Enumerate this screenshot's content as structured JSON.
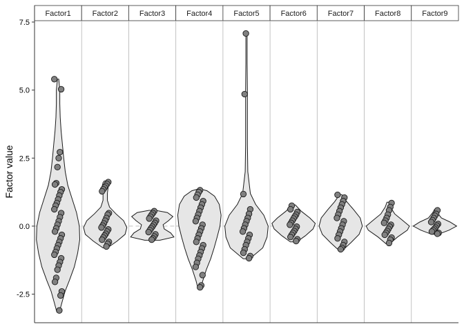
{
  "chart_data": {
    "type": "violin",
    "ylabel": "Factor value",
    "xlabel": "",
    "ylim": [
      -3.55,
      7.55
    ],
    "yticks": [
      -2.5,
      0.0,
      2.5,
      5.0,
      7.5
    ],
    "ytick_labels": [
      "-2.5",
      "0.0",
      "2.5",
      "5.0",
      "7.5"
    ],
    "reference_line": 0,
    "grid": false,
    "colors": {
      "violin_fill": "#e6e6e6",
      "violin_stroke": "#1a1a1a",
      "point_fill": "#808080",
      "point_stroke": "#1a1a1a",
      "strip_fill": "#ffffff",
      "panel_border": "#b3b3b3",
      "reference_line": "#bfbfbf"
    },
    "panels": [
      {
        "name": "Factor1",
        "values": [
          5.4,
          5.03,
          2.72,
          2.5,
          2.17,
          1.58,
          1.53,
          1.35,
          1.25,
          1.12,
          0.98,
          0.85,
          0.75,
          0.62,
          0.48,
          0.33,
          0.18,
          0.05,
          -0.08,
          -0.2,
          -0.32,
          -0.45,
          -0.58,
          -0.7,
          -0.82,
          -0.95,
          -1.05,
          -1.18,
          -1.32,
          -1.45,
          -1.6,
          -1.9,
          -2.05,
          -2.4,
          -2.55,
          -3.1
        ],
        "density": [
          [
            -3.15,
            0.06
          ],
          [
            -2.8,
            0.18
          ],
          [
            -2.4,
            0.32
          ],
          [
            -2.0,
            0.52
          ],
          [
            -1.5,
            0.75
          ],
          [
            -1.0,
            0.9
          ],
          [
            -0.5,
            1.0
          ],
          [
            0.0,
            0.98
          ],
          [
            0.5,
            0.85
          ],
          [
            1.0,
            0.65
          ],
          [
            1.5,
            0.45
          ],
          [
            2.0,
            0.33
          ],
          [
            2.5,
            0.26
          ],
          [
            3.0,
            0.2
          ],
          [
            3.5,
            0.14
          ],
          [
            4.0,
            0.1
          ],
          [
            4.5,
            0.08
          ],
          [
            5.0,
            0.08
          ],
          [
            5.4,
            0.03
          ]
        ]
      },
      {
        "name": "Factor2",
        "values": [
          1.62,
          1.55,
          1.48,
          1.42,
          1.35,
          1.28,
          0.48,
          0.42,
          0.3,
          0.2,
          0.1,
          0.02,
          -0.05,
          -0.12,
          -0.2,
          -0.28,
          -0.35,
          -0.42,
          -0.5,
          -0.58,
          -0.65,
          -0.75
        ],
        "density": [
          [
            -0.8,
            0.1
          ],
          [
            -0.55,
            0.55
          ],
          [
            -0.3,
            0.92
          ],
          [
            -0.05,
            1.0
          ],
          [
            0.2,
            0.85
          ],
          [
            0.45,
            0.5
          ],
          [
            0.7,
            0.2
          ],
          [
            0.95,
            0.1
          ],
          [
            1.2,
            0.1
          ],
          [
            1.45,
            0.14
          ],
          [
            1.6,
            0.1
          ],
          [
            1.66,
            0.04
          ]
        ]
      },
      {
        "name": "Factor3",
        "values": [
          0.55,
          0.48,
          0.42,
          0.35,
          0.28,
          0.2,
          0.12,
          0.05,
          -0.02,
          -0.08,
          -0.15,
          -0.22,
          -0.3,
          -0.38,
          -0.45,
          -0.5
        ],
        "density": [
          [
            -0.52,
            0.35
          ],
          [
            -0.4,
            1.0
          ],
          [
            -0.25,
            0.85
          ],
          [
            -0.1,
            0.55
          ],
          [
            0.05,
            0.5
          ],
          [
            0.2,
            0.75
          ],
          [
            0.35,
            0.95
          ],
          [
            0.5,
            0.7
          ],
          [
            0.58,
            0.15
          ]
        ]
      },
      {
        "name": "Factor4",
        "values": [
          1.32,
          1.25,
          1.15,
          1.05,
          0.92,
          0.8,
          0.68,
          0.55,
          0.42,
          0.3,
          0.18,
          0.05,
          -0.08,
          -0.2,
          -0.32,
          -0.45,
          -0.58,
          -0.7,
          -0.82,
          -0.95,
          -1.08,
          -1.2,
          -1.35,
          -1.5,
          -1.8,
          -2.18,
          -2.25
        ],
        "density": [
          [
            -2.3,
            0.06
          ],
          [
            -2.0,
            0.16
          ],
          [
            -1.6,
            0.32
          ],
          [
            -1.2,
            0.52
          ],
          [
            -0.8,
            0.68
          ],
          [
            -0.4,
            0.82
          ],
          [
            0.0,
            0.95
          ],
          [
            0.4,
            1.0
          ],
          [
            0.8,
            0.92
          ],
          [
            1.1,
            0.7
          ],
          [
            1.3,
            0.35
          ],
          [
            1.36,
            0.08
          ]
        ]
      },
      {
        "name": "Factor5",
        "values": [
          7.08,
          4.85,
          1.18,
          0.62,
          0.45,
          0.3,
          0.18,
          0.05,
          -0.08,
          -0.2,
          -0.32,
          -0.45,
          -0.58,
          -0.7,
          -0.85,
          -0.98,
          -1.1,
          -1.18
        ],
        "density": [
          [
            -1.2,
            0.15
          ],
          [
            -0.8,
            0.75
          ],
          [
            -0.4,
            0.95
          ],
          [
            0.0,
            1.0
          ],
          [
            0.4,
            0.8
          ],
          [
            0.8,
            0.42
          ],
          [
            1.2,
            0.18
          ],
          [
            2.0,
            0.06
          ],
          [
            3.0,
            0.04
          ],
          [
            4.0,
            0.04
          ],
          [
            5.0,
            0.04
          ],
          [
            6.0,
            0.03
          ],
          [
            7.0,
            0.03
          ],
          [
            7.12,
            0.01
          ]
        ]
      },
      {
        "name": "Factor6",
        "values": [
          0.75,
          0.62,
          0.52,
          0.42,
          0.35,
          0.28,
          0.2,
          0.12,
          0.05,
          -0.02,
          -0.1,
          -0.18,
          -0.25,
          -0.32,
          -0.4,
          -0.48,
          -0.55
        ],
        "density": [
          [
            -0.58,
            0.15
          ],
          [
            -0.35,
            0.55
          ],
          [
            -0.1,
            0.9
          ],
          [
            0.1,
            1.0
          ],
          [
            0.3,
            0.75
          ],
          [
            0.55,
            0.35
          ],
          [
            0.78,
            0.08
          ]
        ]
      },
      {
        "name": "Factor7",
        "values": [
          1.15,
          1.05,
          0.92,
          0.8,
          0.68,
          0.55,
          0.42,
          0.3,
          0.18,
          0.05,
          -0.08,
          -0.2,
          -0.32,
          -0.45,
          -0.58,
          -0.7,
          -0.8,
          -0.85
        ],
        "density": [
          [
            -0.88,
            0.1
          ],
          [
            -0.6,
            0.48
          ],
          [
            -0.3,
            0.85
          ],
          [
            0.0,
            1.0
          ],
          [
            0.3,
            0.9
          ],
          [
            0.6,
            0.6
          ],
          [
            0.9,
            0.28
          ],
          [
            1.15,
            0.06
          ]
        ]
      },
      {
        "name": "Factor8",
        "values": [
          0.85,
          0.7,
          0.58,
          0.42,
          0.3,
          0.2,
          0.12,
          0.05,
          -0.02,
          -0.1,
          -0.18,
          -0.25,
          -0.32,
          -0.42,
          -0.5,
          -0.62
        ],
        "density": [
          [
            -0.65,
            0.08
          ],
          [
            -0.4,
            0.45
          ],
          [
            -0.15,
            0.9
          ],
          [
            0.0,
            1.0
          ],
          [
            0.2,
            0.7
          ],
          [
            0.45,
            0.32
          ],
          [
            0.7,
            0.12
          ],
          [
            0.88,
            0.04
          ]
        ]
      },
      {
        "name": "Factor9",
        "values": [
          0.58,
          0.45,
          0.38,
          0.3,
          0.22,
          0.15,
          0.08,
          0.02,
          -0.05,
          -0.1,
          -0.15,
          -0.2,
          -0.25,
          -0.28
        ],
        "density": [
          [
            -0.3,
            0.15
          ],
          [
            -0.15,
            0.65
          ],
          [
            0.0,
            1.0
          ],
          [
            0.15,
            0.7
          ],
          [
            0.3,
            0.3
          ],
          [
            0.5,
            0.1
          ],
          [
            0.6,
            0.03
          ]
        ]
      }
    ]
  }
}
